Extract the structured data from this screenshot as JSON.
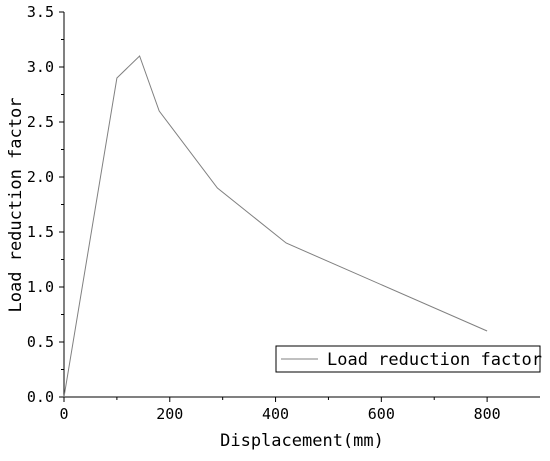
{
  "chart_data": {
    "type": "line",
    "title": "",
    "xlabel": "Displacement(mm)",
    "ylabel": "Load reduction factor",
    "xlim": [
      0,
      900
    ],
    "ylim": [
      0,
      3.5
    ],
    "x_ticks": [
      "0",
      "200",
      "400",
      "600",
      "800"
    ],
    "y_ticks": [
      "0.0",
      "0.5",
      "1.0",
      "1.5",
      "2.0",
      "2.5",
      "3.0",
      "3.5"
    ],
    "grid": false,
    "legend_position": "bottom-right",
    "series": [
      {
        "name": "Load reduction factor",
        "color": "#808080",
        "x": [
          0,
          100,
          143,
          180,
          290,
          420,
          800
        ],
        "y": [
          0.0,
          2.9,
          3.1,
          2.6,
          1.9,
          1.4,
          0.6
        ]
      }
    ]
  }
}
